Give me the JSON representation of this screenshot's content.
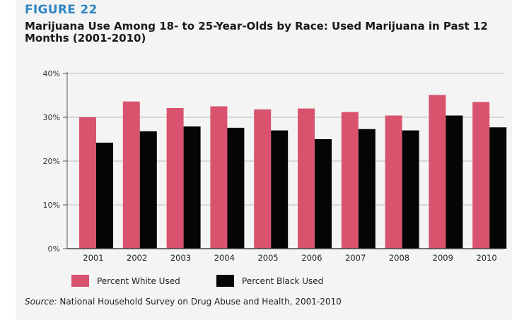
{
  "figure_label": "FIGURE 22",
  "source_label": "Source:",
  "source_text": "National Household Survey on Drug Abuse and Health, 2001-2010",
  "chart_data": {
    "type": "bar",
    "title": "Marijuana Use Among 18- to 25-Year-Olds by Race: Used Marijuana in Past 12 Months (2001-2010)",
    "categories": [
      "2001",
      "2002",
      "2003",
      "2004",
      "2005",
      "2006",
      "2007",
      "2008",
      "2009",
      "2010"
    ],
    "series": [
      {
        "name": "Percent White Used",
        "color": "#d9536f",
        "values": [
          30.0,
          33.6,
          32.1,
          32.5,
          31.8,
          32.0,
          31.2,
          30.4,
          35.1,
          33.5
        ]
      },
      {
        "name": "Percent Black Used",
        "color": "#050505",
        "values": [
          24.2,
          26.8,
          27.9,
          27.6,
          27.0,
          25.0,
          27.3,
          27.0,
          30.4,
          27.7
        ]
      }
    ],
    "ylim": [
      0,
      40
    ],
    "yticks": [
      0,
      10,
      20,
      30,
      40
    ],
    "ytick_labels": [
      "0%",
      "10%",
      "20%",
      "30%",
      "40%"
    ],
    "xlabel": "",
    "ylabel": "",
    "grid": true,
    "legend_position": "bottom"
  }
}
